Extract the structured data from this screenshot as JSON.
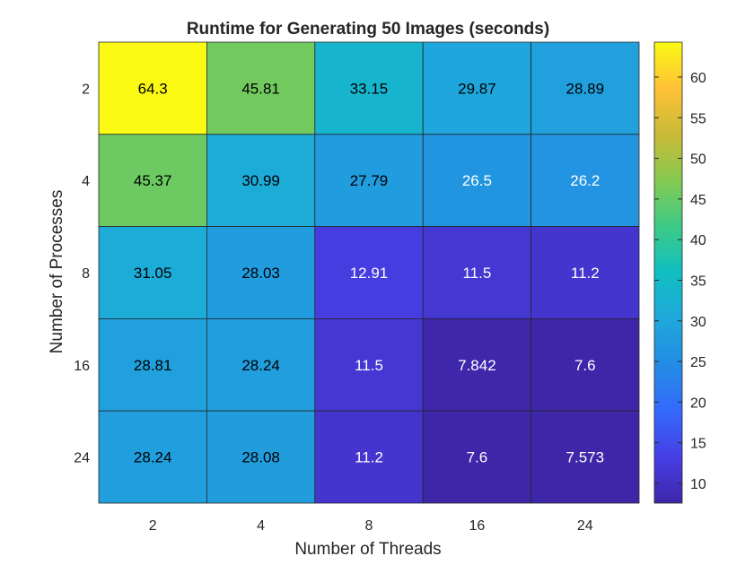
{
  "chart_data": {
    "type": "heatmap",
    "title": "Runtime for Generating 50 Images (seconds)",
    "xlabel": "Number of Threads",
    "ylabel": "Number of Processes",
    "x_categories": [
      "2",
      "4",
      "8",
      "16",
      "24"
    ],
    "y_categories": [
      "2",
      "4",
      "8",
      "16",
      "24"
    ],
    "values": [
      [
        64.3,
        45.81,
        33.15,
        29.87,
        28.89
      ],
      [
        45.37,
        30.99,
        27.79,
        26.5,
        26.2
      ],
      [
        31.05,
        28.03,
        12.91,
        11.5,
        11.2
      ],
      [
        28.81,
        28.24,
        11.5,
        7.842,
        7.6
      ],
      [
        28.24,
        28.08,
        11.2,
        7.6,
        7.573
      ]
    ],
    "value_labels": [
      [
        "64.3",
        "45.81",
        "33.15",
        "29.87",
        "28.89"
      ],
      [
        "45.37",
        "30.99",
        "27.79",
        "26.5",
        "26.2"
      ],
      [
        "31.05",
        "28.03",
        "12.91",
        "11.5",
        "11.2"
      ],
      [
        "28.81",
        "28.24",
        "11.5",
        "7.842",
        "7.6"
      ],
      [
        "28.24",
        "28.08",
        "11.2",
        "7.6",
        "7.573"
      ]
    ],
    "colormap": "parula",
    "colorbar": {
      "range": [
        7.573,
        64.3
      ],
      "ticks": [
        10,
        15,
        20,
        25,
        30,
        35,
        40,
        45,
        50,
        55,
        60
      ],
      "location": "right"
    },
    "colors": {
      "text_dark": "#000000",
      "text_light": "#ffffff",
      "grid": "#262626"
    }
  }
}
